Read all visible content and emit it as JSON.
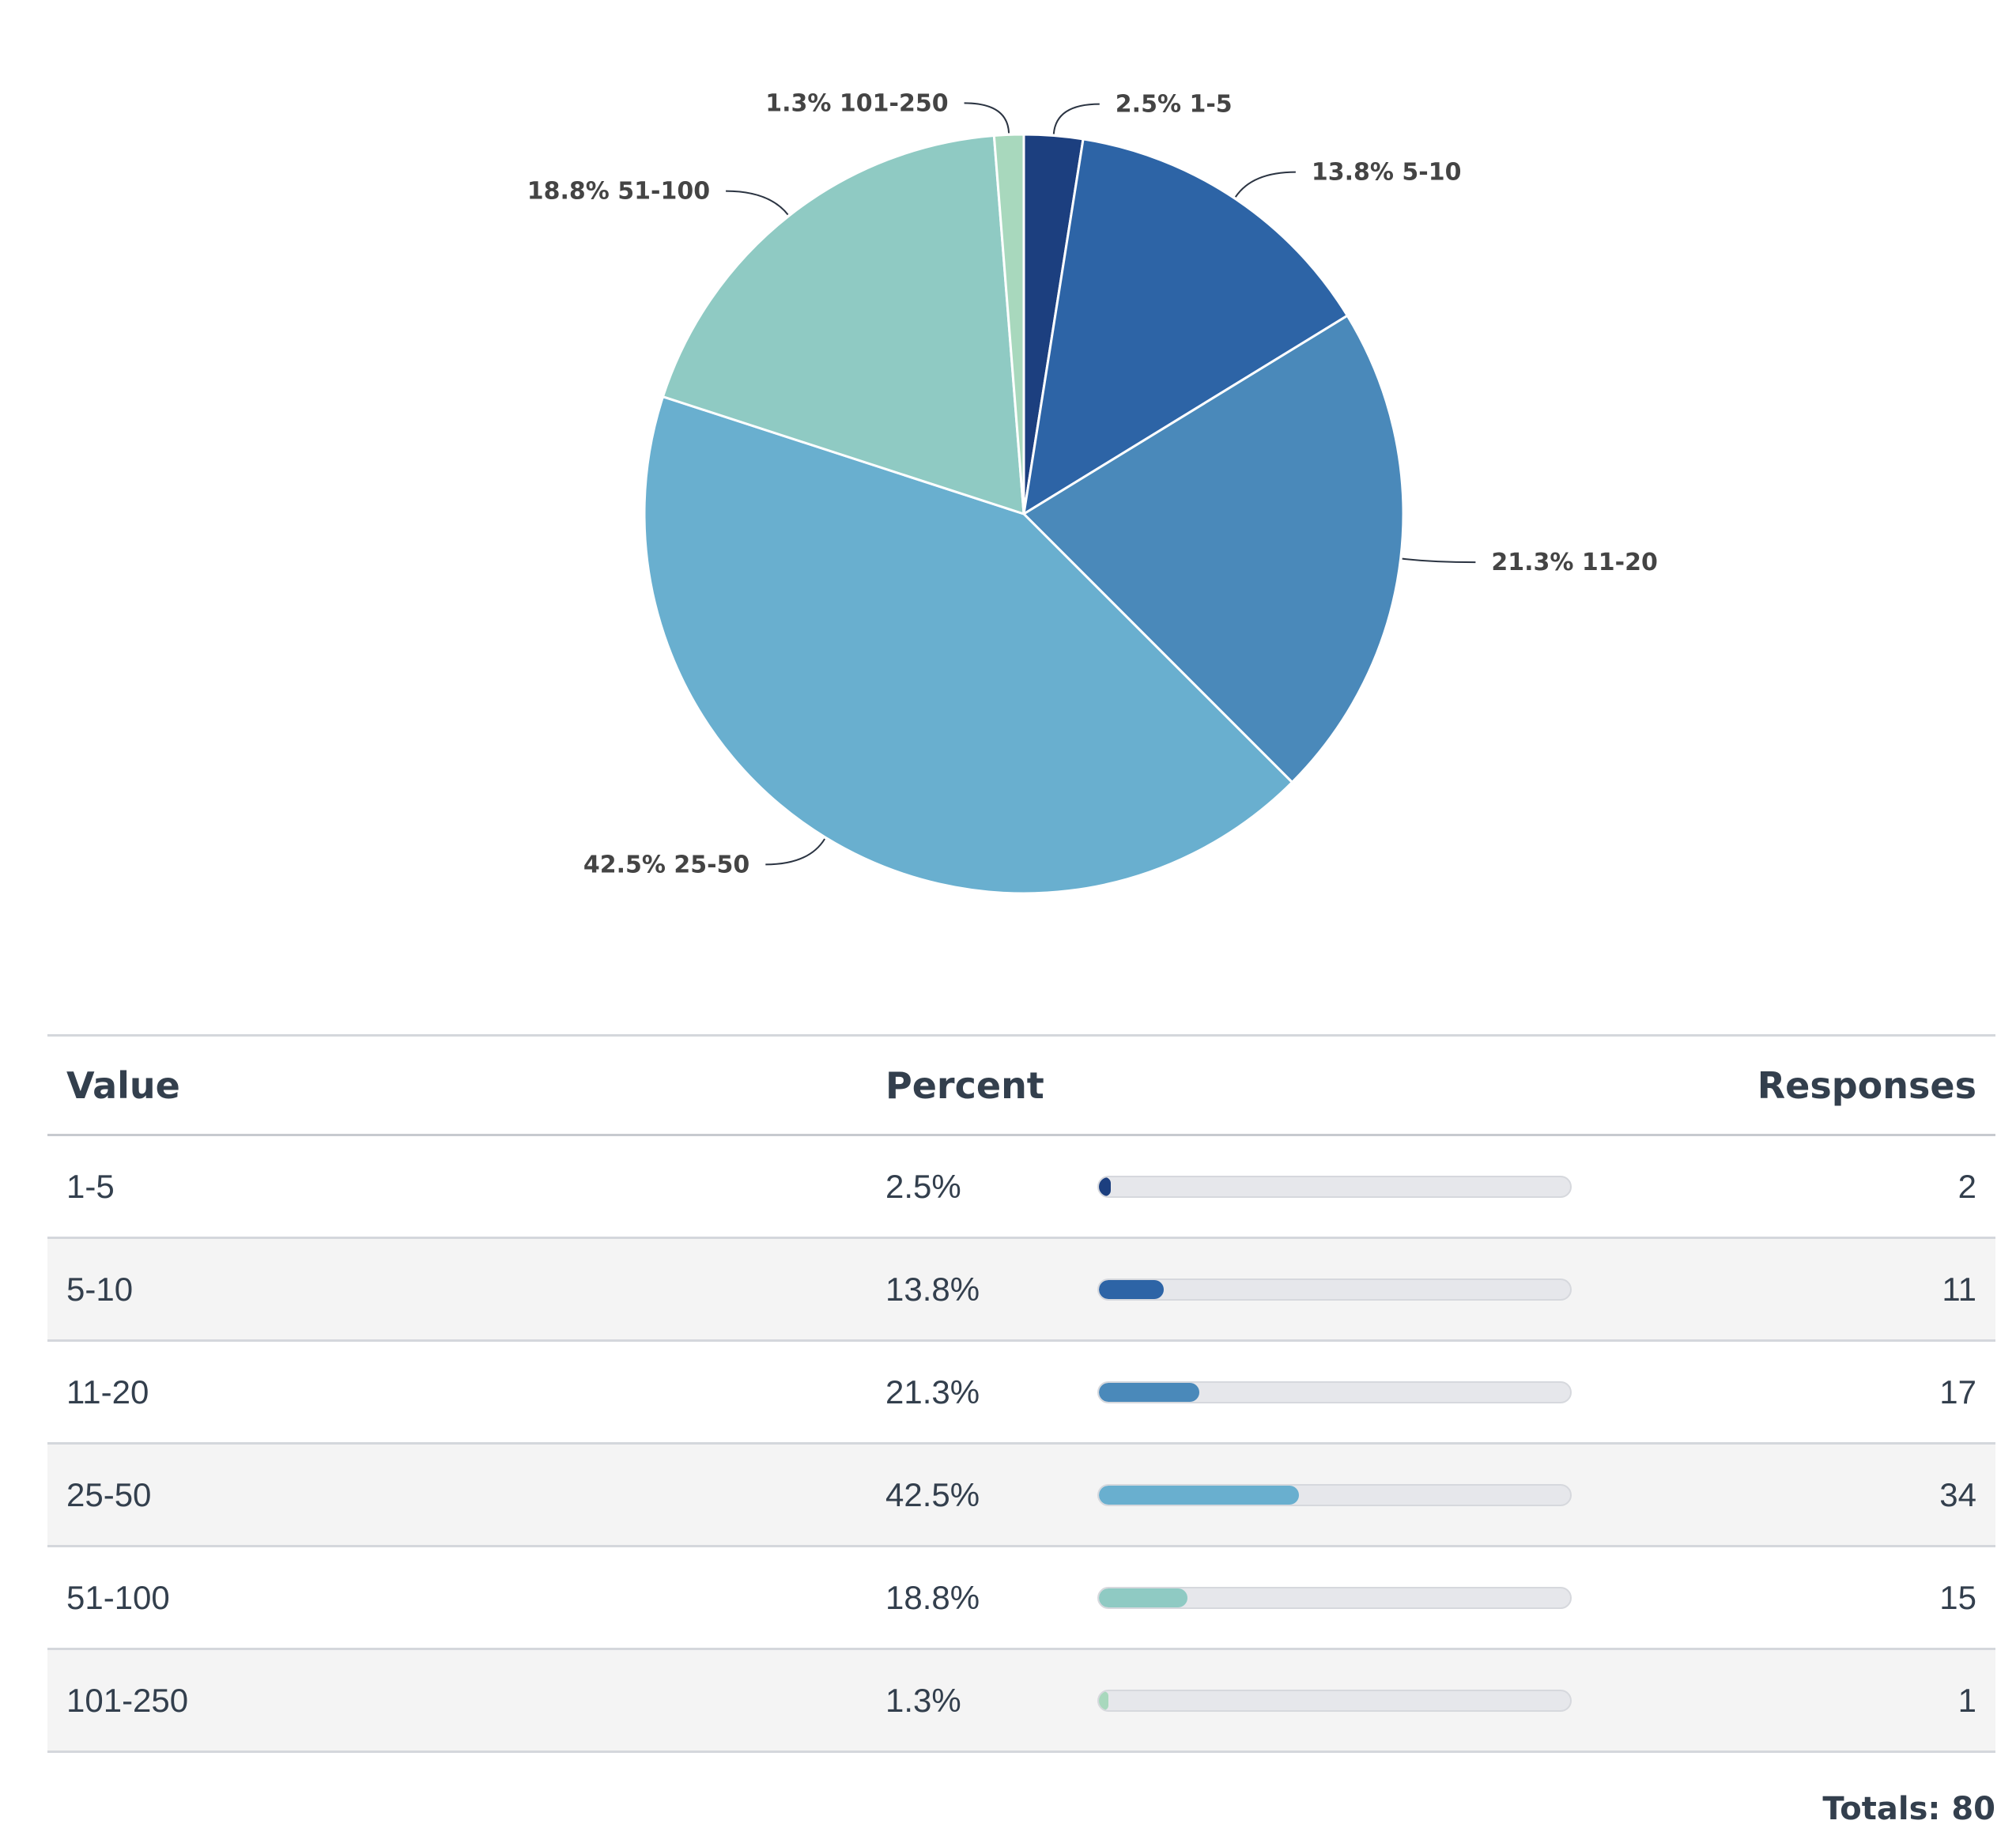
{
  "chart_data": {
    "type": "pie",
    "title": "",
    "slices": [
      {
        "label": "1-5",
        "percent_label": "2.5%",
        "value": 2,
        "color": "#1c3f7f"
      },
      {
        "label": "5-10",
        "percent_label": "13.8%",
        "value": 11,
        "color": "#2d64a6"
      },
      {
        "label": "11-20",
        "percent_label": "21.3%",
        "value": 17,
        "color": "#4a89ba"
      },
      {
        "label": "25-50",
        "percent_label": "42.5%",
        "value": 34,
        "color": "#69afcf"
      },
      {
        "label": "51-100",
        "percent_label": "18.8%",
        "value": 15,
        "color": "#8fcac3"
      },
      {
        "label": "101-250",
        "percent_label": "1.3%",
        "value": 1,
        "color": "#a8d8bd"
      }
    ]
  },
  "table": {
    "headers": {
      "value": "Value",
      "percent": "Percent",
      "responses": "Responses"
    },
    "rows": [
      {
        "value": "1-5",
        "percent": "2.5%",
        "responses": "2"
      },
      {
        "value": "5-10",
        "percent": "13.8%",
        "responses": "11"
      },
      {
        "value": "11-20",
        "percent": "21.3%",
        "responses": "17"
      },
      {
        "value": "25-50",
        "percent": "42.5%",
        "responses": "34"
      },
      {
        "value": "51-100",
        "percent": "18.8%",
        "responses": "15"
      },
      {
        "value": "101-250",
        "percent": "1.3%",
        "responses": "1"
      }
    ],
    "totals": "Totals: 80"
  }
}
